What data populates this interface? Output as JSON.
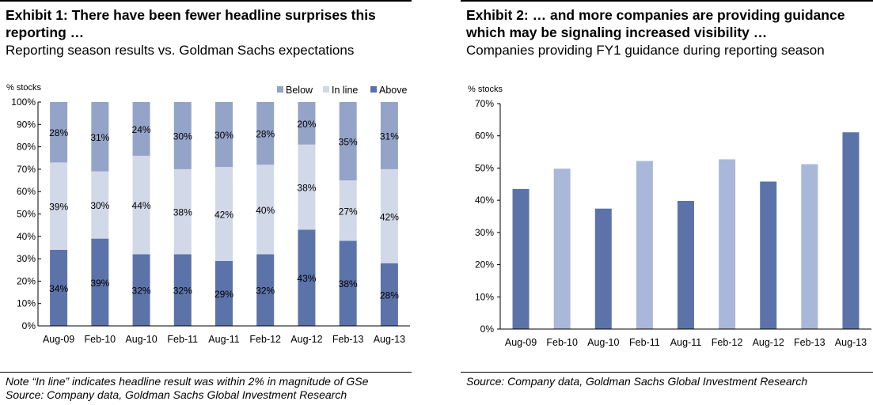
{
  "exhibit1": {
    "title": "Exhibit 1: There have been fewer headline surprises this reporting …",
    "title_line1": "Exhibit 1: There have been fewer headline surprises this",
    "title_line2": "reporting …",
    "subtitle": "Reporting season results vs. Goldman Sachs expectations",
    "note": "Note “In line” indicates headline result was within 2% in magnitude of GSe",
    "source": "Source:  Company data, Goldman Sachs Global Investment Research"
  },
  "exhibit2": {
    "title_line1": "Exhibit 2: … and more companies are providing guidance",
    "title_line2": "which may be signaling increased visibility …",
    "subtitle": "Companies providing FY1 guidance during reporting season",
    "source": "Source:  Company data, Goldman Sachs Global Investment Research"
  },
  "chart_data": [
    {
      "type": "bar",
      "stacked": true,
      "ylabel": "% stocks",
      "ylim": [
        0,
        100
      ],
      "yticks": [
        "0%",
        "10%",
        "20%",
        "30%",
        "40%",
        "50%",
        "60%",
        "70%",
        "80%",
        "90%",
        "100%"
      ],
      "categories": [
        "Aug-09",
        "Feb-10",
        "Aug-10",
        "Feb-11",
        "Aug-11",
        "Feb-12",
        "Aug-12",
        "Feb-13",
        "Aug-13"
      ],
      "series": [
        {
          "name": "Above",
          "color": "#5B73A8",
          "values": [
            34,
            39,
            32,
            32,
            29,
            32,
            43,
            38,
            28
          ]
        },
        {
          "name": "In line",
          "color": "#D1D8E8",
          "values": [
            39,
            30,
            44,
            38,
            42,
            40,
            38,
            27,
            42
          ]
        },
        {
          "name": "Below",
          "color": "#94A4C8",
          "values": [
            28,
            31,
            24,
            30,
            30,
            28,
            20,
            35,
            31
          ]
        }
      ],
      "legend": [
        "Below",
        "In line",
        "Above"
      ],
      "legend_position": "top-right",
      "grid": false
    },
    {
      "type": "bar",
      "ylabel": "% stocks",
      "ylim": [
        0,
        70
      ],
      "yticks": [
        "0%",
        "10%",
        "20%",
        "30%",
        "40%",
        "50%",
        "60%",
        "70%"
      ],
      "categories": [
        "Aug-09",
        "Feb-10",
        "Aug-10",
        "Feb-11",
        "Aug-11",
        "Feb-12",
        "Aug-12",
        "Feb-13",
        "Aug-13"
      ],
      "values": [
        43.5,
        49.8,
        37.4,
        52.2,
        39.8,
        52.7,
        45.8,
        51.2,
        61.1
      ],
      "colors": {
        "Aug": "#5B73A8",
        "Feb": "#A9B8D9"
      },
      "grid": false
    }
  ]
}
